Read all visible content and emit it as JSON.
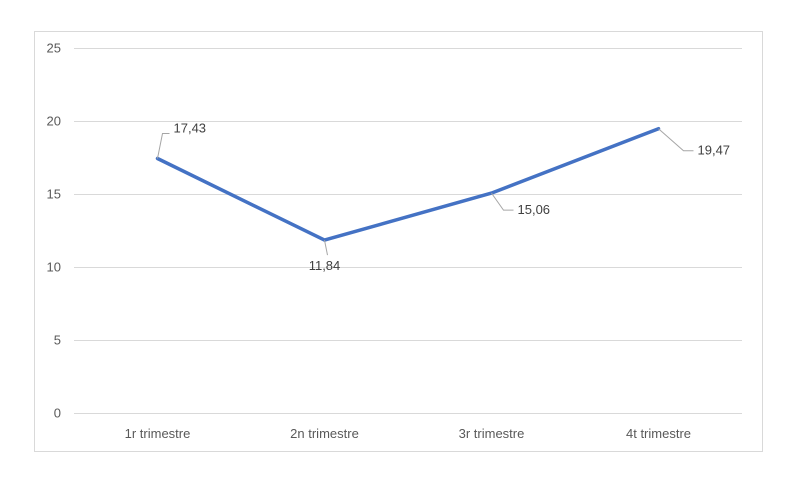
{
  "chart_data": {
    "type": "line",
    "title": "",
    "xlabel": "",
    "ylabel": "",
    "categories": [
      "1r trimestre",
      "2n trimestre",
      "3r trimestre",
      "4t trimestre"
    ],
    "series": [
      {
        "values": [
          17.43,
          11.84,
          15.06,
          19.47
        ],
        "labels": [
          "17,43",
          "11,84",
          "15,06",
          "19,47"
        ],
        "color": "#4472c4"
      }
    ],
    "ylim": [
      0,
      25
    ],
    "yticks": [
      0,
      5,
      10,
      15,
      20,
      25
    ],
    "ytick_labels": [
      "0",
      "5",
      "10",
      "15",
      "20",
      "25"
    ],
    "grid": true,
    "legend": "none",
    "gridline_color": "#d9d9d9",
    "leader_line_color": "#a6a6a6"
  }
}
